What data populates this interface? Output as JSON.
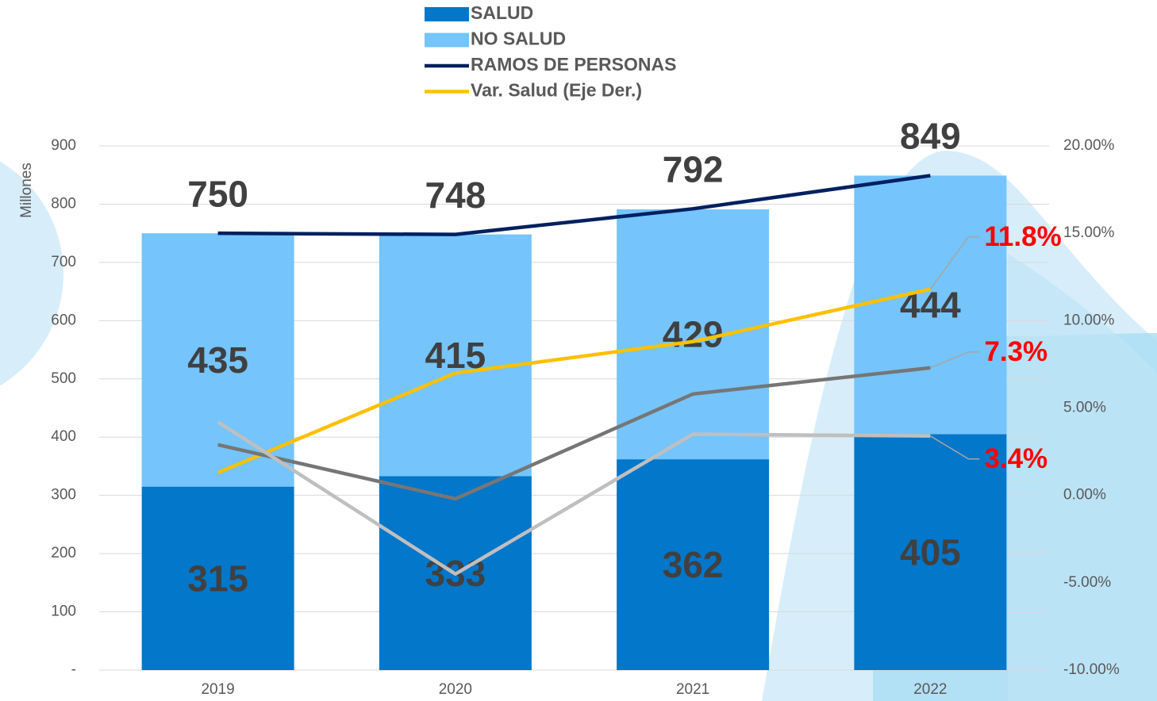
{
  "chart_data": {
    "type": "bar",
    "stacked": true,
    "categories": [
      "2019",
      "2020",
      "2021",
      "2022"
    ],
    "y_label": "Millones",
    "ylim": [
      0,
      900
    ],
    "yticks": [
      {
        "value": 0,
        "label": "-"
      },
      100,
      200,
      300,
      400,
      500,
      600,
      700,
      800,
      900
    ],
    "y2lim": [
      -10,
      20
    ],
    "y2ticks": [
      {
        "value": -10,
        "label": "-10.00%"
      },
      {
        "value": -5,
        "label": "-5.00%"
      },
      {
        "value": 0,
        "label": "0.00%"
      },
      {
        "value": 5,
        "label": "5.00%"
      },
      {
        "value": 10,
        "label": "10.00%"
      },
      {
        "value": 15,
        "label": "15.00%"
      },
      {
        "value": 20,
        "label": "20.00%"
      }
    ],
    "grid": true,
    "series": [
      {
        "name": "SALUD",
        "type": "bar",
        "color": "#0377c9",
        "values": [
          315,
          333,
          362,
          405
        ]
      },
      {
        "name": "NO SALUD",
        "type": "bar",
        "color": "#75c4fb",
        "values": [
          435,
          415,
          429,
          444
        ]
      },
      {
        "name": "RAMOS DE PERSONAS",
        "type": "line",
        "color": "#002060",
        "values": [
          750,
          748,
          792,
          849
        ]
      },
      {
        "name": "Var. Salud (Eje Der.)",
        "type": "line",
        "axis": "y2",
        "color": "#ffc000",
        "values": [
          1.3,
          7.0,
          8.8,
          11.8
        ],
        "value_labels": [
          null,
          null,
          null,
          "11.8%"
        ]
      },
      {
        "type": "line",
        "axis": "y2",
        "color": "#767676",
        "values": [
          2.9,
          -0.2,
          5.8,
          7.3
        ],
        "value_labels": [
          null,
          null,
          null,
          "7.3%"
        ]
      },
      {
        "type": "line",
        "axis": "y2",
        "color": "#bfbfbf",
        "values": [
          4.2,
          -4.5,
          3.5,
          3.4
        ],
        "value_labels": [
          null,
          null,
          null,
          "3.4%"
        ]
      }
    ]
  }
}
